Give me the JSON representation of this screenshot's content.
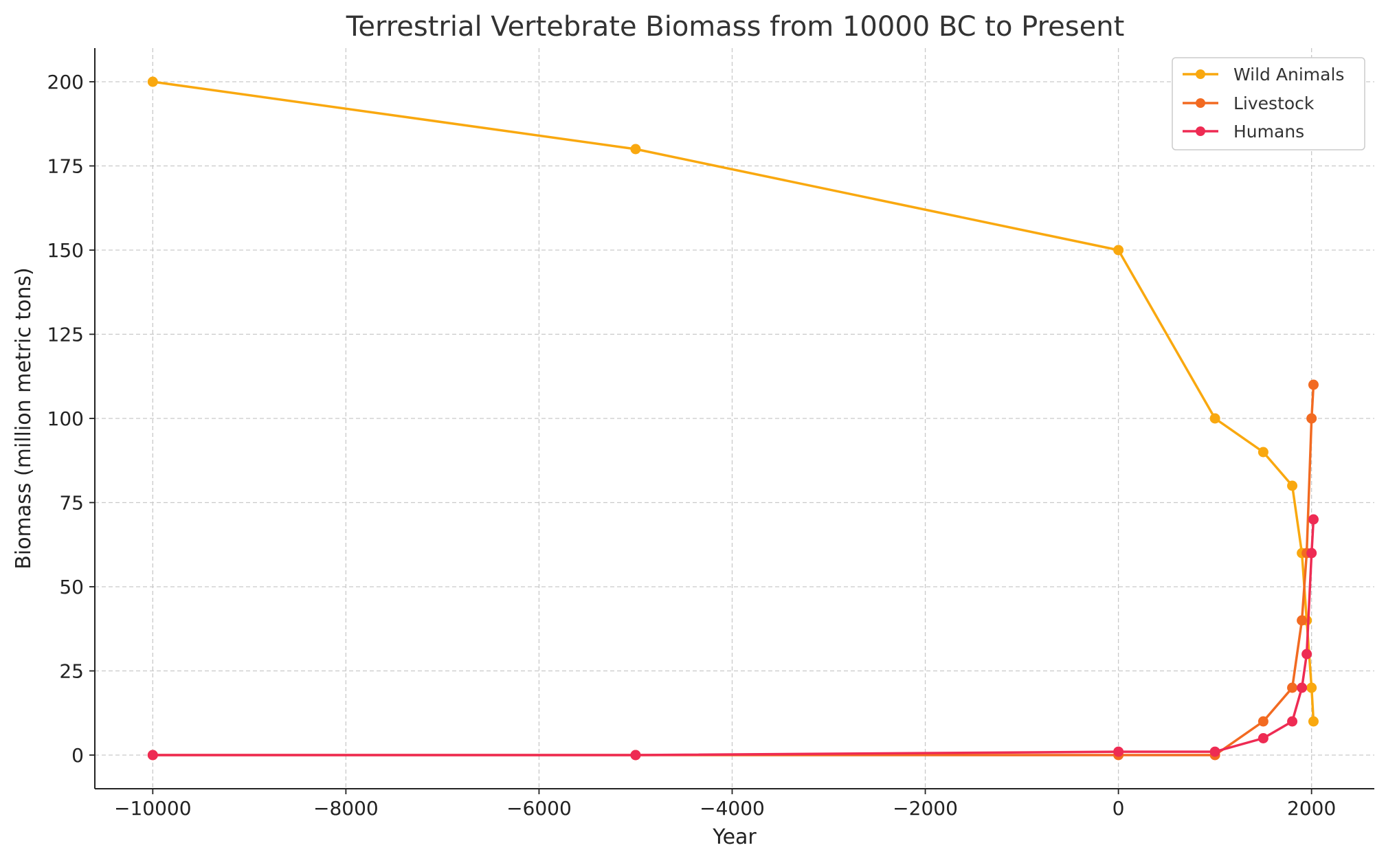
{
  "chart_data": {
    "type": "line",
    "title": "Terrestrial Vertebrate Biomass from 10000 BC to Present",
    "xlabel": "Year",
    "ylabel": "Biomass (million metric tons)",
    "xlim": [
      -10600,
      2650
    ],
    "ylim": [
      -10,
      210
    ],
    "x_ticks": [
      -10000,
      -8000,
      -6000,
      -4000,
      -2000,
      0,
      2000
    ],
    "x_tick_labels": [
      "−10000",
      "−8000",
      "−6000",
      "−4000",
      "−2000",
      "0",
      "2000"
    ],
    "y_ticks": [
      0,
      25,
      50,
      75,
      100,
      125,
      150,
      175,
      200
    ],
    "y_tick_labels": [
      "0",
      "25",
      "50",
      "75",
      "100",
      "125",
      "150",
      "175",
      "200"
    ],
    "grid": true,
    "legend_position": "top-right",
    "x": [
      -10000,
      -5000,
      0,
      1000,
      1500,
      1800,
      1900,
      1950,
      2000,
      2020
    ],
    "series": [
      {
        "name": "Wild Animals",
        "color": "#F9A80F",
        "values": [
          200,
          180,
          150,
          100,
          90,
          80,
          60,
          40,
          20,
          10
        ]
      },
      {
        "name": "Livestock",
        "color": "#F26A21",
        "values": [
          0,
          0,
          0,
          0,
          10,
          20,
          40,
          60,
          100,
          110
        ]
      },
      {
        "name": "Humans",
        "color": "#EE2B53",
        "values": [
          0,
          0,
          1,
          1,
          5,
          10,
          20,
          30,
          60,
          70
        ]
      }
    ]
  }
}
